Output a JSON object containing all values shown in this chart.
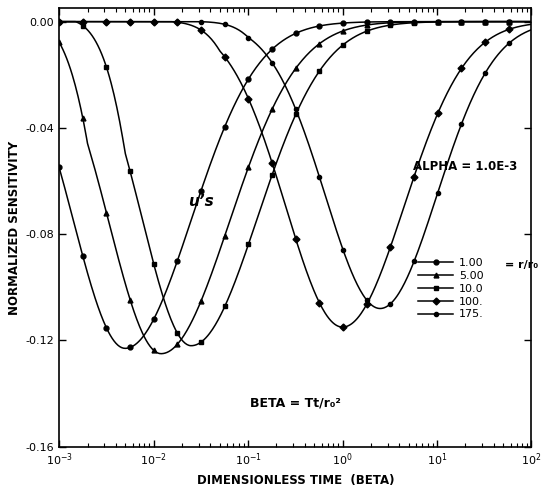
{
  "title": "",
  "xlabel": "DIMENSIONLESS TIME  (BETA)",
  "ylabel": "NORMALIZED SENSITIVITY",
  "beta_label": "BETA = Tt/r₀²",
  "alpha_label": "ALPHA = 1.0E-3",
  "us_label": "u’s",
  "legend_labels": [
    "1.00",
    "5.00",
    "10.0",
    "100.",
    "175."
  ],
  "legend_suffix": "= r/r₀",
  "ylim": [
    -0.16,
    0.005
  ],
  "yticks": [
    0.0,
    -0.04,
    -0.08,
    -0.12,
    -0.16
  ],
  "background_color": "#ffffff",
  "marker_styles": [
    "o",
    "^",
    "s",
    "D",
    "o"
  ],
  "marker_sizes": [
    3.5,
    3.5,
    3.5,
    3.5,
    3.0
  ]
}
